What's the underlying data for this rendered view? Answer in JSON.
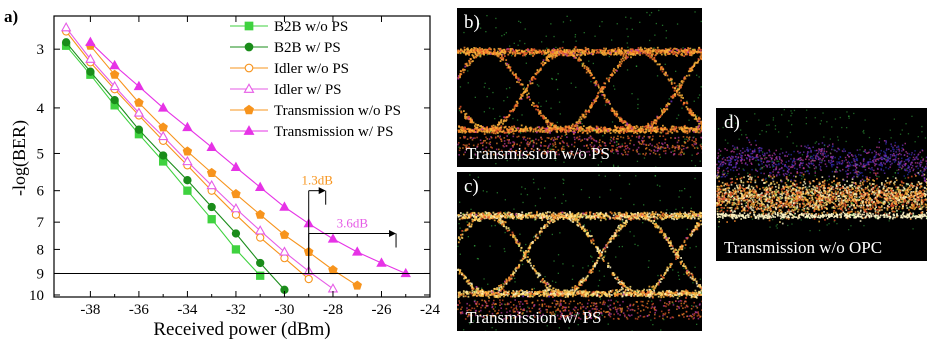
{
  "panels": [
    {
      "letter": "b)",
      "caption": "Transmission  w/o PS"
    },
    {
      "letter": "c)",
      "caption": "Transmission  w/ PS"
    },
    {
      "letter": "d)",
      "caption": "Transmission  w/o OPC"
    }
  ],
  "chart_data": {
    "type": "line",
    "panel_label": "a)",
    "xlabel": "Received power (dBm)",
    "ylabel": "-log(BER)",
    "xlim": [
      -39.5,
      -24
    ],
    "ylim": [
      2.55,
      10.1
    ],
    "y_scale": "log",
    "y_reversed": true,
    "x_ticks": [
      -38,
      -36,
      -34,
      -32,
      -30,
      -28,
      -26,
      -24
    ],
    "y_ticks": [
      3,
      4,
      5,
      6,
      7,
      8,
      9,
      10
    ],
    "grid": false,
    "legend": "top-right",
    "threshold_line": 9,
    "series": [
      {
        "name": "B2B w/o PS",
        "color": "#3fd23f",
        "marker": "square-filled",
        "x": [
          -39,
          -38,
          -37,
          -36,
          -35,
          -34,
          -33,
          -32,
          -31
        ],
        "y": [
          2.95,
          3.4,
          3.95,
          4.55,
          5.2,
          6.0,
          6.9,
          8.0,
          9.1
        ]
      },
      {
        "name": "B2B w/ PS",
        "color": "#1a8c1a",
        "marker": "circle-filled",
        "x": [
          -39,
          -38,
          -37,
          -36,
          -35,
          -34,
          -33,
          -32,
          -31,
          -30
        ],
        "y": [
          2.9,
          3.35,
          3.85,
          4.45,
          5.05,
          5.7,
          6.5,
          7.4,
          8.55,
          9.75
        ]
      },
      {
        "name": "Idler w/o PS",
        "color": "#f7941d",
        "marker": "circle-open",
        "x": [
          -39,
          -38,
          -37,
          -36,
          -35,
          -34,
          -33,
          -32,
          -31,
          -30,
          -29
        ],
        "y": [
          2.75,
          3.2,
          3.65,
          4.15,
          4.7,
          5.3,
          6.0,
          6.75,
          7.55,
          8.35,
          9.25
        ]
      },
      {
        "name": "Idler w/ PS",
        "color": "#e65be6",
        "marker": "triangle-open",
        "x": [
          -39,
          -38,
          -37,
          -36,
          -35,
          -34,
          -33,
          -32,
          -31,
          -30,
          -29,
          -28
        ],
        "y": [
          2.7,
          3.15,
          3.6,
          4.1,
          4.6,
          5.2,
          5.85,
          6.55,
          7.3,
          8.1,
          8.9,
          9.7
        ]
      },
      {
        "name": "Transmission w/o PS",
        "color": "#f7941d",
        "marker": "pentagon-filled",
        "x": [
          -38,
          -37,
          -36,
          -35,
          -34,
          -33,
          -32,
          -31,
          -30,
          -29,
          -28,
          -27
        ],
        "y": [
          2.95,
          3.4,
          3.9,
          4.4,
          4.95,
          5.5,
          6.1,
          6.75,
          7.45,
          8.1,
          8.85,
          9.55
        ]
      },
      {
        "name": "Transmission w/ PS",
        "color": "#e633e6",
        "marker": "triangle-filled",
        "x": [
          -38,
          -37,
          -36,
          -35,
          -34,
          -33,
          -32,
          -31,
          -30,
          -29,
          -28,
          -27,
          -26,
          -25
        ],
        "y": [
          2.9,
          3.25,
          3.6,
          4.0,
          4.4,
          4.85,
          5.35,
          5.9,
          6.5,
          7.05,
          7.6,
          8.1,
          8.55,
          9.0
        ]
      }
    ],
    "annotations": [
      {
        "text": "1.3dB",
        "color": "#f7941d",
        "from_x": -29,
        "to_x": -28.3,
        "y": 6.0
      },
      {
        "text": "3.6dB",
        "color": "#e65be6",
        "from_x": -29,
        "to_x": -25.4,
        "y": 7.4
      }
    ]
  }
}
